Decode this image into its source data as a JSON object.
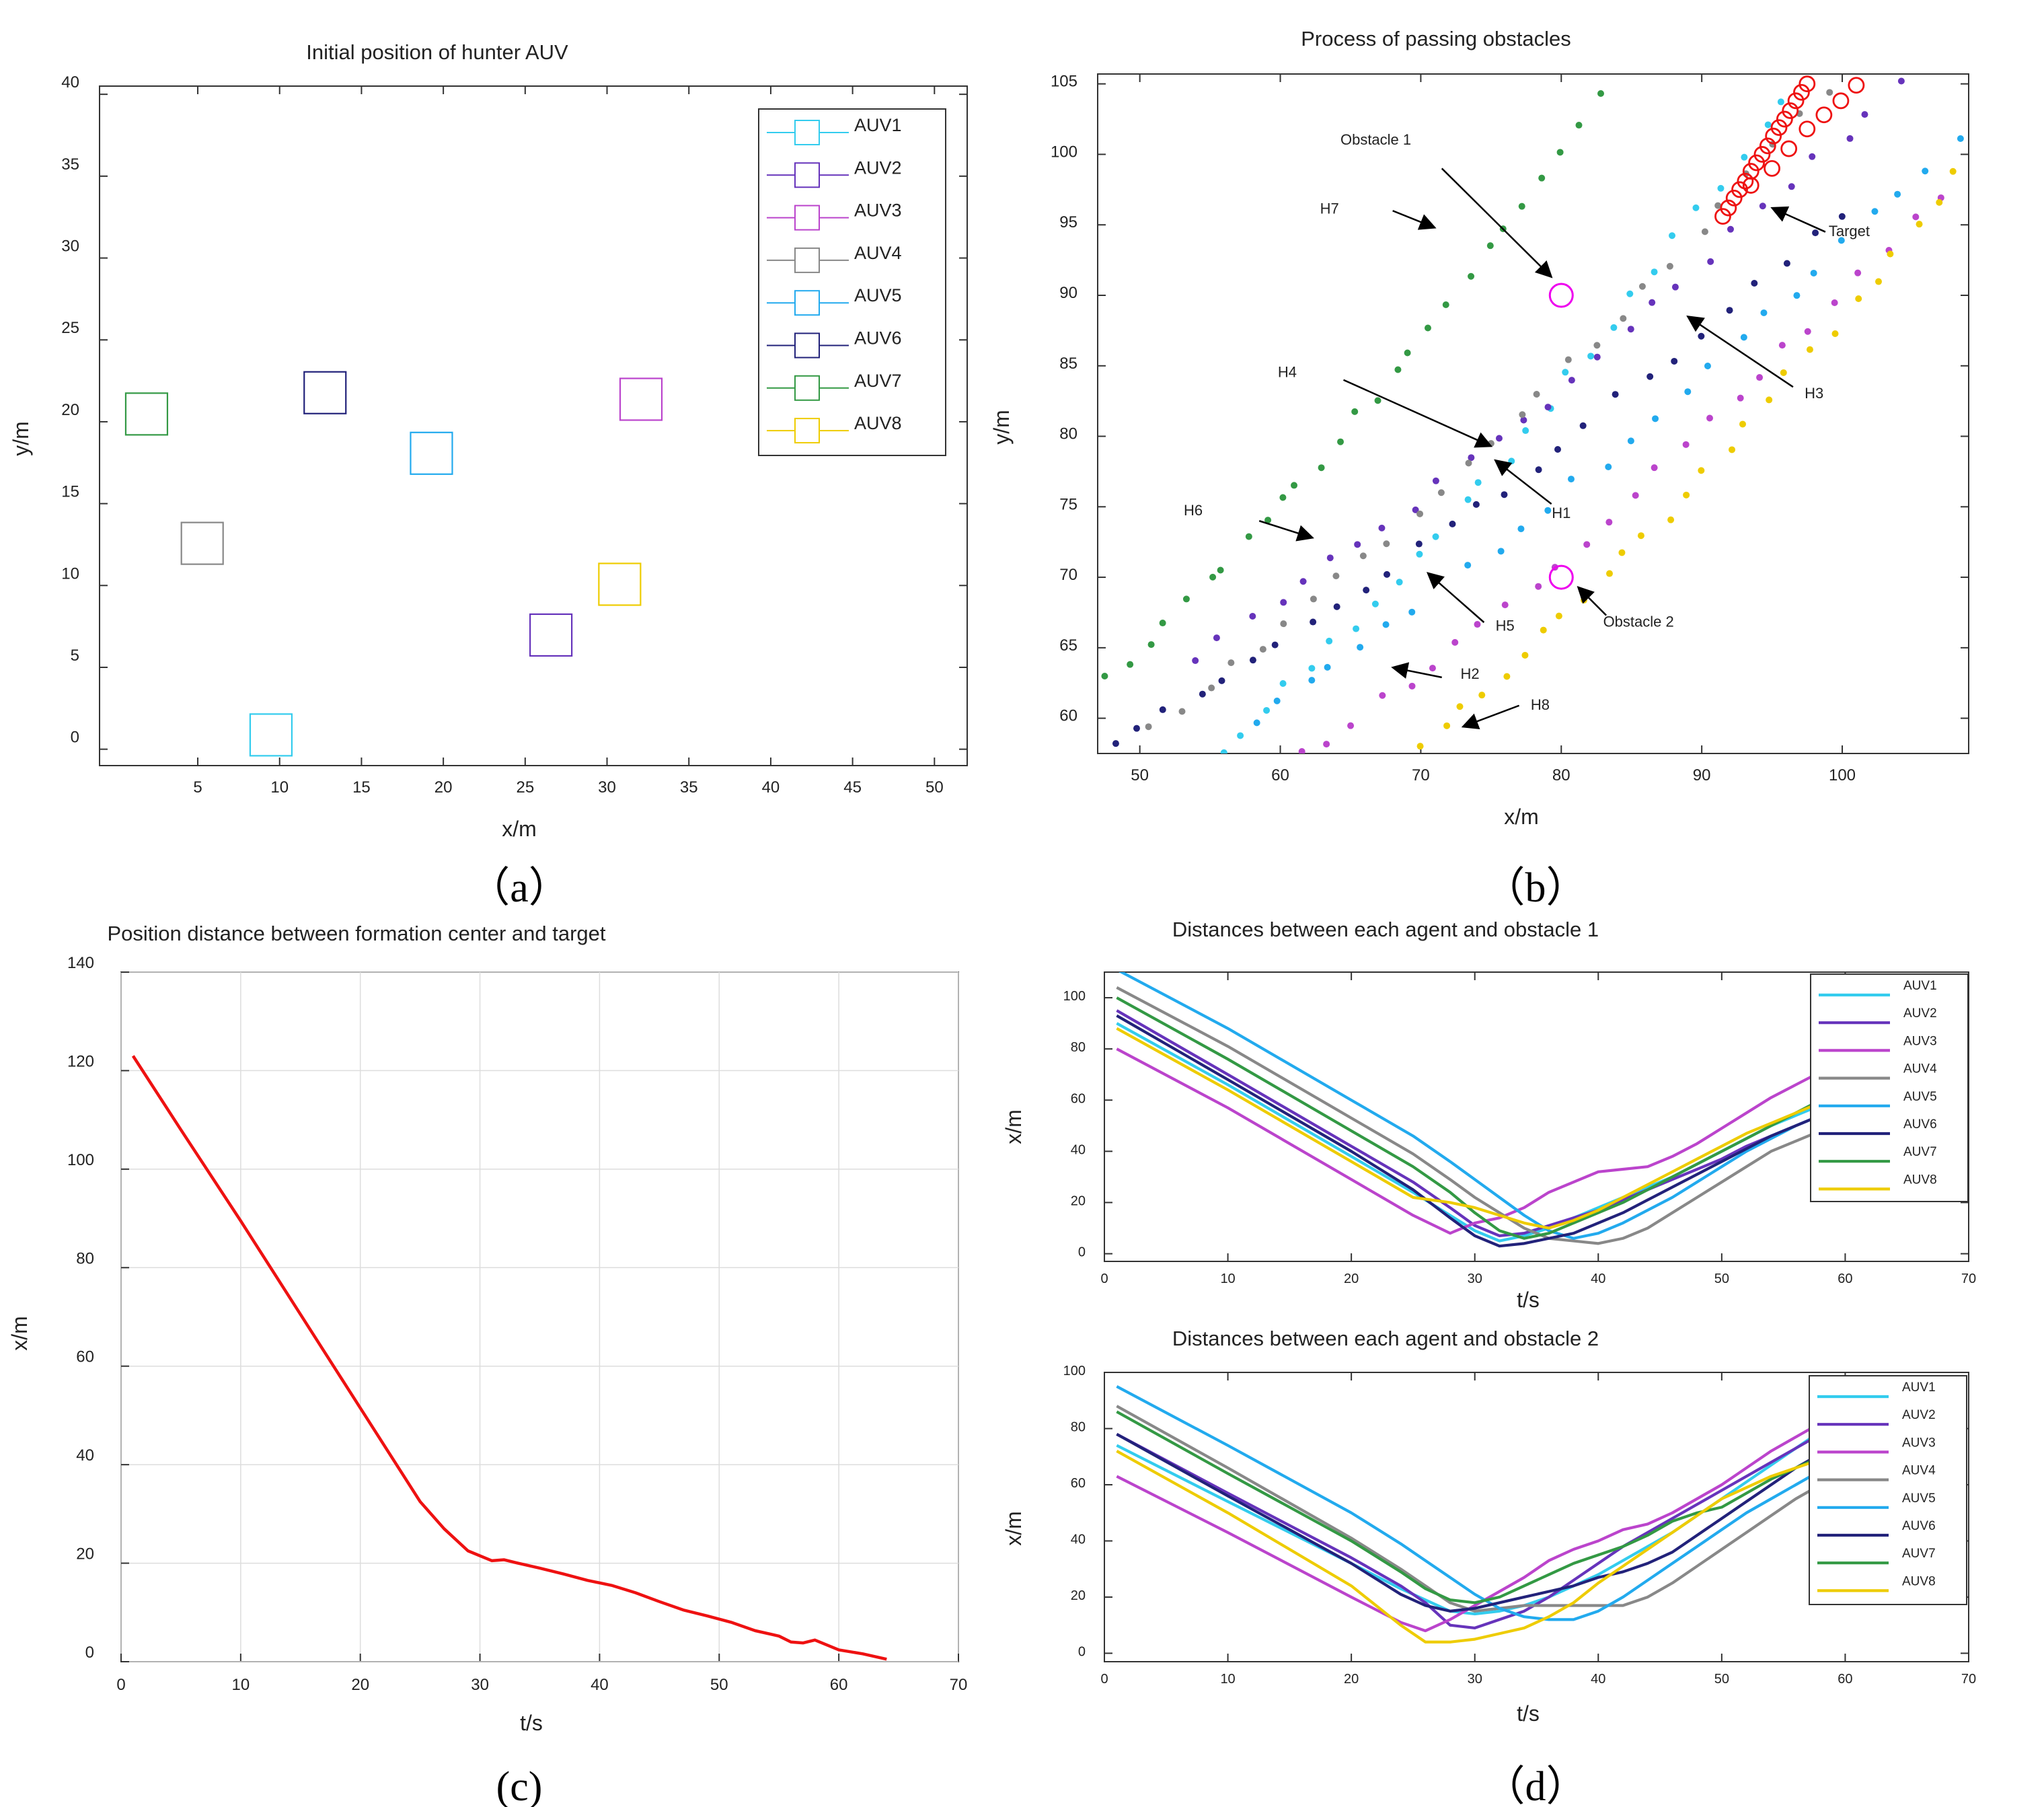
{
  "panel_labels": [
    "（a）",
    "（b）",
    "(c)",
    "（d）"
  ],
  "colors": {
    "AUV1": "#33ccee",
    "AUV2": "#6633bb",
    "AUV3": "#bb44cc",
    "AUV4": "#888888",
    "AUV5": "#22aaee",
    "AUV6": "#22227a",
    "AUV7": "#339944",
    "AUV8": "#eecc00",
    "red": "#ee1111",
    "magenta": "#ee00ee"
  },
  "chart_data": [
    {
      "id": "a",
      "type": "scatter",
      "title": "Initial position of hunter AUV",
      "xlabel": "x/m",
      "ylabel": "y/m",
      "xlim": [
        -1,
        52
      ],
      "ylim": [
        -1,
        40.5
      ],
      "xticks": [
        5,
        10,
        15,
        20,
        25,
        30,
        35,
        40,
        45,
        50
      ],
      "yticks": [
        0,
        5,
        10,
        15,
        20,
        25,
        30,
        35,
        40
      ],
      "grid": false,
      "legend": "top-right",
      "series": [
        {
          "name": "AUV1",
          "x": 8.2,
          "y": -0.4
        },
        {
          "name": "AUV2",
          "x": 25.3,
          "y": 5.7
        },
        {
          "name": "AUV3",
          "x": 30.8,
          "y": 20.1
        },
        {
          "name": "AUV4",
          "x": 4.0,
          "y": 11.3
        },
        {
          "name": "AUV5",
          "x": 18.0,
          "y": 16.8
        },
        {
          "name": "AUV6",
          "x": 11.5,
          "y": 20.5
        },
        {
          "name": "AUV7",
          "x": 0.6,
          "y": 19.2
        },
        {
          "name": "AUV8",
          "x": 29.5,
          "y": 8.8
        }
      ]
    },
    {
      "id": "b",
      "type": "scatter",
      "title": "Process of passing obstacles",
      "xlabel": "x/m",
      "ylabel": "y/m",
      "xlim": [
        47,
        109
      ],
      "ylim": [
        57.5,
        105.7
      ],
      "xticks": [
        50,
        60,
        70,
        80,
        90,
        100
      ],
      "yticks": [
        60,
        65,
        70,
        75,
        80,
        85,
        90,
        95,
        100,
        105
      ],
      "grid": false,
      "obstacles": [
        {
          "label": "Obstacle 1",
          "x": 80,
          "y": 90
        },
        {
          "label": "Obstacle 2",
          "x": 80,
          "y": 70
        }
      ],
      "annotations": [
        {
          "text": "Obstacle 1",
          "tx": 66.8,
          "ty": 100.7,
          "ax": 71.5,
          "ay": 99.0,
          "hx": 79.3,
          "hy": 91.3
        },
        {
          "text": "Obstacle 2",
          "tx": 85.5,
          "ty": 66.5,
          "ax": 83.2,
          "ay": 67.3,
          "hx": 81.2,
          "hy": 69.3
        },
        {
          "text": "Target",
          "tx": 100.5,
          "ty": 94.2,
          "ax": 98.8,
          "ay": 94.5,
          "hx": 95.0,
          "hy": 96.2
        },
        {
          "text": "H7",
          "tx": 63.5,
          "ty": 95.8,
          "ax": 68.0,
          "ay": 96.0,
          "hx": 71.0,
          "hy": 94.8
        },
        {
          "text": "H4",
          "tx": 60.5,
          "ty": 84.2,
          "ax": 64.5,
          "ay": 84.0,
          "hx": 75.0,
          "hy": 79.3
        },
        {
          "text": "H3",
          "tx": 98.0,
          "ty": 82.7,
          "ax": 96.5,
          "ay": 83.5,
          "hx": 89.0,
          "hy": 88.5
        },
        {
          "text": "H1",
          "tx": 80.0,
          "ty": 74.2,
          "ax": 79.3,
          "ay": 75.2,
          "hx": 75.3,
          "hy": 78.3
        },
        {
          "text": "H6",
          "tx": 53.8,
          "ty": 74.4,
          "ax": 58.5,
          "ay": 74.0,
          "hx": 62.3,
          "hy": 72.8
        },
        {
          "text": "H5",
          "tx": 76.0,
          "ty": 66.2,
          "ax": 74.5,
          "ay": 66.8,
          "hx": 70.5,
          "hy": 70.3
        },
        {
          "text": "H2",
          "tx": 73.5,
          "ty": 62.8,
          "ax": 71.5,
          "ay": 62.9,
          "hx": 68.0,
          "hy": 63.6
        },
        {
          "text": "H8",
          "tx": 78.5,
          "ty": 60.6,
          "ax": 77.0,
          "ay": 60.9,
          "hx": 73.0,
          "hy": 59.4
        }
      ],
      "target_path_x": [
        91.5,
        91.9,
        92.3,
        92.7,
        93.1,
        93.5,
        93.9,
        94.3,
        94.7,
        95.1,
        95.5,
        95.9,
        96.3,
        96.7,
        97.1,
        97.5
      ],
      "target_path_y": [
        95.6,
        96.2,
        96.9,
        97.5,
        98.1,
        98.8,
        99.4,
        100.0,
        100.6,
        101.3,
        101.9,
        102.5,
        103.1,
        103.8,
        104.4,
        105.0
      ],
      "chase_circles_x": [
        93.5,
        95.0,
        96.2,
        97.5,
        98.7,
        99.9,
        101.0
      ],
      "chase_circles_y": [
        97.8,
        99.0,
        100.4,
        101.8,
        102.8,
        103.8,
        104.9
      ],
      "trajectories": [
        {
          "name": "AUV1",
          "start": [
            56,
            57.5
          ],
          "end": [
            96,
            104
          ]
        },
        {
          "name": "AUV2",
          "start": [
            54,
            64.5
          ],
          "end": [
            104,
            105
          ]
        },
        {
          "name": "AUV3",
          "start": [
            60,
            56
          ],
          "end": [
            107,
            97
          ]
        },
        {
          "name": "AUV4",
          "start": [
            51,
            59
          ],
          "end": [
            99,
            104.5
          ]
        },
        {
          "name": "AUV5",
          "start": [
            58,
            60
          ],
          "end": [
            108,
            101
          ]
        },
        {
          "name": "AUV6",
          "start": [
            48,
            58
          ],
          "end": [
            100,
            96
          ]
        },
        {
          "name": "AUV7",
          "start": [
            48,
            63
          ],
          "end": [
            83,
            104
          ]
        },
        {
          "name": "AUV8",
          "start": [
            70,
            58
          ],
          "end": [
            108,
            98.5
          ]
        }
      ]
    },
    {
      "id": "c",
      "type": "line",
      "title": "Position distance between formation center and target",
      "xlabel": "t/s",
      "ylabel": "x/m",
      "xlim": [
        0,
        70
      ],
      "ylim": [
        0,
        140
      ],
      "xticks": [
        0,
        10,
        20,
        30,
        40,
        50,
        60,
        70
      ],
      "yticks": [
        0,
        20,
        40,
        60,
        80,
        100,
        120,
        140
      ],
      "grid": true,
      "series": [
        {
          "x": [
            1,
            5,
            10,
            15,
            20,
            25,
            27,
            29,
            31,
            32,
            33,
            35,
            37,
            39,
            41,
            43,
            45,
            47,
            49,
            51,
            53,
            55,
            56,
            57,
            58,
            60,
            62,
            64
          ],
          "y": [
            123,
            108,
            89.5,
            70.5,
            51.5,
            32.5,
            27,
            22.5,
            20.5,
            20.7,
            20.1,
            19,
            17.8,
            16.5,
            15.5,
            14,
            12.2,
            10.5,
            9.3,
            8,
            6.3,
            5.2,
            4,
            3.8,
            4.4,
            2.4,
            1.6,
            0.5
          ]
        }
      ]
    },
    {
      "id": "d1",
      "type": "line",
      "title": "Distances between each agent and obstacle 1",
      "xlabel": "t/s",
      "ylabel": "x/m",
      "xlim": [
        0,
        70
      ],
      "ylim": [
        -3,
        110
      ],
      "xticks": [
        0,
        10,
        20,
        30,
        40,
        50,
        60,
        70
      ],
      "yticks": [
        0,
        20,
        40,
        60,
        80,
        100
      ],
      "grid": false,
      "legend": "top-right",
      "x": [
        1,
        10,
        20,
        25,
        28,
        30,
        32,
        34,
        36,
        38,
        40,
        42,
        44,
        46,
        48,
        50,
        52,
        54,
        56,
        58,
        60
      ],
      "series": [
        {
          "name": "AUV1",
          "values": [
            90,
            66,
            38,
            24,
            15,
            9,
            5,
            7,
            10,
            14,
            18,
            22,
            26,
            30,
            35,
            40,
            45,
            50,
            54,
            58,
            62
          ]
        },
        {
          "name": "AUV2",
          "values": [
            95,
            70,
            42,
            28,
            18,
            11,
            7,
            8,
            11,
            14,
            17,
            21,
            25,
            29,
            33,
            37,
            42,
            46,
            50,
            54,
            58
          ]
        },
        {
          "name": "AUV3",
          "values": [
            80,
            57,
            29,
            15,
            8,
            12,
            14,
            18,
            24,
            28,
            32,
            33,
            34,
            38,
            43,
            49,
            55,
            61,
            66,
            71,
            76
          ]
        },
        {
          "name": "AUV4",
          "values": [
            104,
            81,
            53,
            39,
            29,
            22,
            16,
            10,
            6,
            5,
            4,
            6,
            10,
            16,
            22,
            28,
            34,
            40,
            44,
            48,
            52
          ]
        },
        {
          "name": "AUV5",
          "values": [
            111,
            88,
            60,
            46,
            36,
            29,
            22,
            15,
            9,
            6,
            8,
            12,
            17,
            22,
            28,
            34,
            40,
            45,
            50,
            54,
            58
          ]
        },
        {
          "name": "AUV6",
          "values": [
            93,
            68,
            40,
            25,
            14,
            7,
            3,
            4,
            6,
            8,
            12,
            16,
            21,
            26,
            31,
            36,
            41,
            46,
            50,
            54,
            58
          ]
        },
        {
          "name": "AUV7",
          "values": [
            100,
            76,
            48,
            34,
            24,
            16,
            9,
            6,
            8,
            12,
            16,
            20,
            25,
            30,
            35,
            40,
            45,
            50,
            55,
            60,
            64
          ]
        },
        {
          "name": "AUV8",
          "values": [
            88,
            64,
            36,
            22,
            20,
            18,
            15,
            12,
            10,
            13,
            17,
            22,
            27,
            32,
            37,
            42,
            47,
            51,
            55,
            59,
            63
          ]
        }
      ]
    },
    {
      "id": "d2",
      "type": "line",
      "title": "Distances between each agent and obstacle 2",
      "xlabel": "t/s",
      "ylabel": "x/m",
      "xlim": [
        0,
        70
      ],
      "ylim": [
        -3,
        100
      ],
      "xticks": [
        0,
        10,
        20,
        30,
        40,
        50,
        60,
        70
      ],
      "yticks": [
        0,
        20,
        40,
        60,
        80,
        100
      ],
      "grid": false,
      "legend": "top-right",
      "x": [
        1,
        10,
        20,
        24,
        26,
        28,
        30,
        32,
        34,
        36,
        38,
        40,
        42,
        44,
        46,
        48,
        50,
        52,
        54,
        56,
        58,
        60
      ],
      "series": [
        {
          "name": "AUV1",
          "values": [
            74,
            54,
            32,
            23,
            19,
            15,
            14,
            15,
            17,
            20,
            24,
            28,
            33,
            38,
            43,
            49,
            55,
            61,
            67,
            73,
            79,
            84
          ]
        },
        {
          "name": "AUV2",
          "values": [
            78,
            57,
            34,
            24,
            18,
            10,
            9,
            12,
            15,
            20,
            26,
            32,
            38,
            43,
            48,
            53,
            58,
            63,
            68,
            73,
            78,
            83
          ]
        },
        {
          "name": "AUV3",
          "values": [
            63,
            43,
            20,
            11,
            8,
            12,
            17,
            22,
            27,
            33,
            37,
            40,
            44,
            46,
            50,
            55,
            60,
            66,
            72,
            77,
            82,
            86
          ]
        },
        {
          "name": "AUV4",
          "values": [
            88,
            66,
            41,
            30,
            24,
            18,
            15,
            16,
            17,
            17,
            17,
            17,
            17,
            20,
            25,
            31,
            37,
            43,
            49,
            55,
            60,
            64
          ]
        },
        {
          "name": "AUV5",
          "values": [
            95,
            74,
            50,
            39,
            33,
            27,
            21,
            16,
            13,
            12,
            12,
            15,
            20,
            26,
            32,
            38,
            44,
            50,
            55,
            60,
            65,
            70
          ]
        },
        {
          "name": "AUV6",
          "values": [
            78,
            56,
            32,
            21,
            17,
            15,
            16,
            18,
            20,
            22,
            24,
            27,
            29,
            32,
            36,
            42,
            48,
            54,
            60,
            66,
            71,
            76
          ]
        },
        {
          "name": "AUV7",
          "values": [
            86,
            64,
            40,
            29,
            23,
            19,
            18,
            20,
            24,
            28,
            32,
            35,
            38,
            42,
            47,
            50,
            52,
            57,
            62,
            66,
            70,
            74
          ]
        },
        {
          "name": "AUV8",
          "values": [
            72,
            50,
            24,
            10,
            4,
            4,
            5,
            7,
            9,
            13,
            18,
            25,
            31,
            37,
            43,
            49,
            55,
            59,
            63,
            66,
            69,
            72
          ]
        }
      ]
    }
  ]
}
